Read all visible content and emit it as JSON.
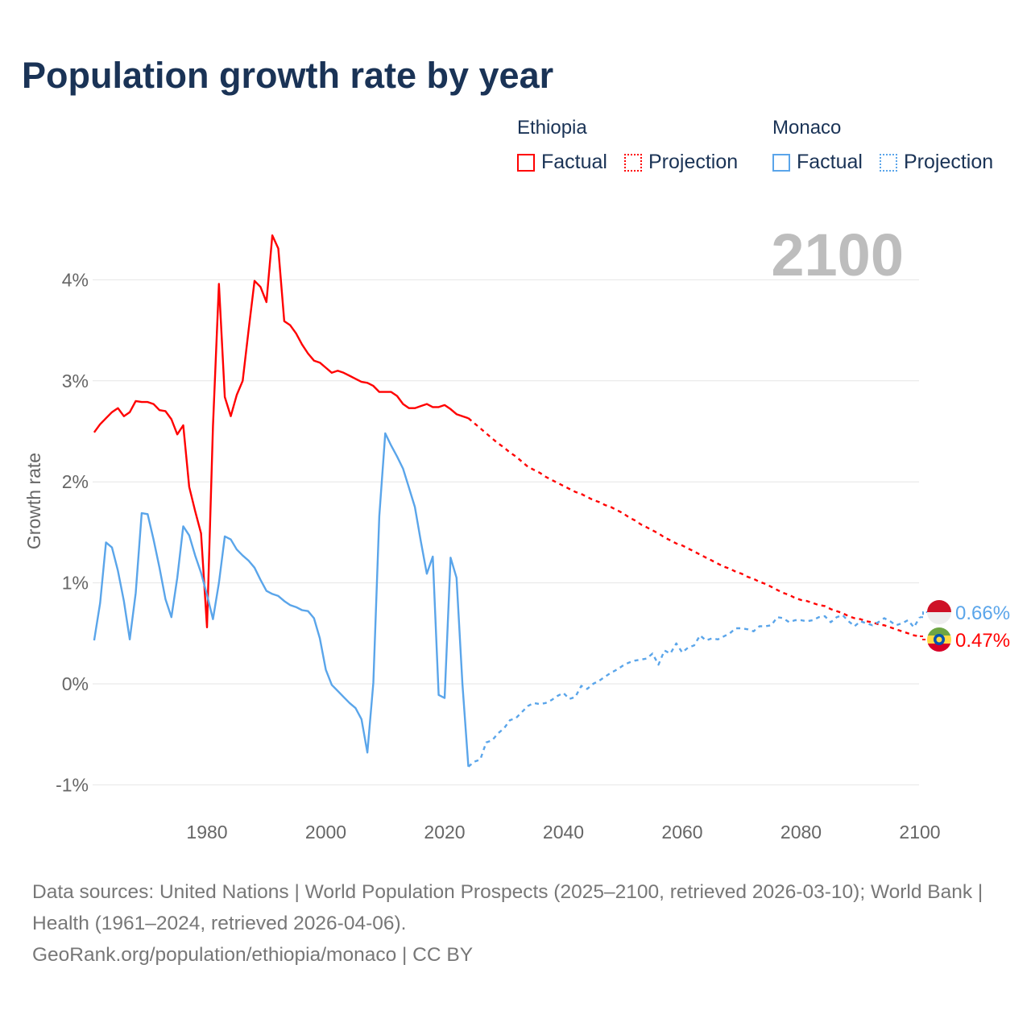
{
  "title": "Population growth rate by year",
  "legend": {
    "groups": [
      {
        "name": "Ethiopia",
        "factual": "Factual",
        "projection": "Projection",
        "color": "#ff0000"
      },
      {
        "name": "Monaco",
        "factual": "Factual",
        "projection": "Projection",
        "color": "#5aa5ea"
      }
    ]
  },
  "footer": {
    "sources": "Data sources: United Nations | World Population Prospects (2025–2100, retrieved 2026-03-10); World Bank | Health (1961–2024, retrieved 2026-04-06).",
    "credit": "GeoRank.org/population/ethiopia/monaco | CC BY"
  },
  "chart_data": {
    "type": "line",
    "title": "Population growth rate by year",
    "year_label": "2100",
    "xlabel": "",
    "ylabel": "Growth rate",
    "xlim": [
      1961,
      2100
    ],
    "ylim": [
      -1.3,
      4.6
    ],
    "x_ticks": [
      1980,
      2000,
      2020,
      2040,
      2060,
      2080,
      2100
    ],
    "y_ticks": [
      -1,
      0,
      1,
      2,
      3,
      4
    ],
    "y_tick_labels": [
      "-1%",
      "0%",
      "1%",
      "2%",
      "3%",
      "4%"
    ],
    "grid": true,
    "series": [
      {
        "name": "Ethiopia Factual",
        "color": "#ff0000",
        "dashed": false,
        "x_start": 1961,
        "values": [
          2.49,
          2.57,
          2.63,
          2.69,
          2.73,
          2.65,
          2.69,
          2.8,
          2.79,
          2.79,
          2.77,
          2.71,
          2.7,
          2.62,
          2.47,
          2.56,
          1.95,
          1.71,
          1.49,
          0.56,
          2.55,
          3.96,
          2.84,
          2.65,
          2.86,
          3.0,
          3.5,
          3.99,
          3.93,
          3.78,
          4.44,
          4.31,
          3.59,
          3.55,
          3.47,
          3.36,
          3.27,
          3.2,
          3.18,
          3.13,
          3.08,
          3.1,
          3.08,
          3.05,
          3.02,
          2.99,
          2.98,
          2.95,
          2.89,
          2.89,
          2.89,
          2.85,
          2.77,
          2.73,
          2.73,
          2.75,
          2.77,
          2.74,
          2.74,
          2.76,
          2.72,
          2.67,
          2.65,
          2.63
        ]
      },
      {
        "name": "Ethiopia Projection",
        "color": "#ff0000",
        "dashed": true,
        "x_start": 2024,
        "values": [
          2.63,
          2.58,
          2.53,
          2.48,
          2.43,
          2.38,
          2.34,
          2.29,
          2.25,
          2.2,
          2.15,
          2.12,
          2.09,
          2.05,
          2.02,
          1.99,
          1.96,
          1.93,
          1.9,
          1.88,
          1.85,
          1.82,
          1.8,
          1.77,
          1.75,
          1.72,
          1.69,
          1.65,
          1.62,
          1.58,
          1.55,
          1.52,
          1.49,
          1.45,
          1.42,
          1.39,
          1.37,
          1.34,
          1.31,
          1.28,
          1.25,
          1.22,
          1.19,
          1.16,
          1.14,
          1.11,
          1.09,
          1.06,
          1.04,
          1.01,
          0.99,
          0.96,
          0.93,
          0.9,
          0.88,
          0.85,
          0.83,
          0.82,
          0.8,
          0.78,
          0.77,
          0.74,
          0.72,
          0.7,
          0.67,
          0.65,
          0.64,
          0.62,
          0.61,
          0.59,
          0.58,
          0.56,
          0.54,
          0.52,
          0.5,
          0.48,
          0.47
        ]
      },
      {
        "name": "Monaco Factual",
        "color": "#5aa5ea",
        "dashed": false,
        "x_start": 1961,
        "values": [
          0.43,
          0.8,
          1.4,
          1.35,
          1.12,
          0.82,
          0.44,
          0.9,
          1.69,
          1.68,
          1.43,
          1.15,
          0.84,
          0.66,
          1.05,
          1.56,
          1.47,
          1.27,
          1.1,
          0.88,
          0.64,
          1.0,
          1.46,
          1.43,
          1.33,
          1.27,
          1.22,
          1.15,
          1.03,
          0.92,
          0.89,
          0.87,
          0.82,
          0.78,
          0.76,
          0.73,
          0.72,
          0.65,
          0.45,
          0.14,
          -0.01,
          -0.07,
          -0.13,
          -0.19,
          -0.24,
          -0.35,
          -0.68,
          0.01,
          1.66,
          2.48,
          2.36,
          2.25,
          2.13,
          1.94,
          1.75,
          1.41,
          1.09,
          1.26,
          -0.11,
          -0.14,
          1.25,
          1.05,
          0.0,
          -0.82
        ]
      },
      {
        "name": "Monaco Projection",
        "color": "#5aa5ea",
        "dashed": true,
        "x_start": 2024,
        "values": [
          -0.82,
          -0.77,
          -0.75,
          -0.58,
          -0.56,
          -0.49,
          -0.44,
          -0.36,
          -0.34,
          -0.28,
          -0.22,
          -0.19,
          -0.2,
          -0.19,
          -0.16,
          -0.12,
          -0.09,
          -0.15,
          -0.13,
          -0.02,
          -0.05,
          0.0,
          0.03,
          0.07,
          0.11,
          0.14,
          0.18,
          0.21,
          0.23,
          0.24,
          0.25,
          0.3,
          0.19,
          0.33,
          0.3,
          0.4,
          0.31,
          0.36,
          0.38,
          0.48,
          0.43,
          0.45,
          0.44,
          0.47,
          0.5,
          0.55,
          0.55,
          0.54,
          0.52,
          0.57,
          0.57,
          0.58,
          0.66,
          0.65,
          0.61,
          0.63,
          0.63,
          0.62,
          0.63,
          0.66,
          0.67,
          0.61,
          0.66,
          0.68,
          0.62,
          0.57,
          0.62,
          0.6,
          0.58,
          0.61,
          0.65,
          0.62,
          0.58,
          0.6,
          0.63,
          0.56,
          0.66
        ]
      }
    ],
    "end_labels": [
      {
        "country": "Monaco",
        "value": 0.66,
        "label": "0.66%",
        "color": "#5aa5ea"
      },
      {
        "country": "Ethiopia",
        "value": 0.47,
        "label": "0.47%",
        "color": "#ff0000"
      }
    ]
  }
}
